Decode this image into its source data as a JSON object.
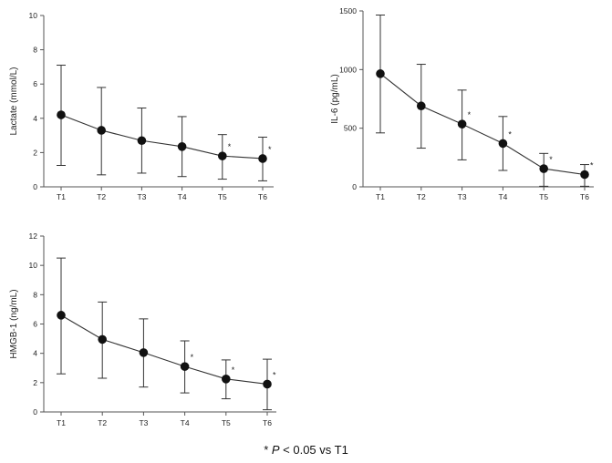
{
  "chart_data": [
    {
      "type": "line",
      "ylabel": "Lactate (mmol/L)",
      "ylim": [
        0,
        10
      ],
      "yticks": [
        "0",
        "2",
        "4",
        "6",
        "8",
        "10"
      ],
      "categories": [
        "T1",
        "T2",
        "T3",
        "T4",
        "T5",
        "T6"
      ],
      "values": [
        4.2,
        3.3,
        2.7,
        2.35,
        1.8,
        1.65
      ],
      "err_low": [
        1.25,
        0.7,
        0.8,
        0.6,
        0.45,
        0.35
      ],
      "err_high": [
        7.1,
        5.8,
        4.6,
        4.1,
        3.05,
        2.9
      ],
      "significant": [
        false,
        false,
        false,
        false,
        true,
        true
      ]
    },
    {
      "type": "line",
      "ylabel": "IL-6 (pg/mL)",
      "ylim": [
        0,
        1500
      ],
      "yticks": [
        "0",
        "500",
        "1000",
        "1500"
      ],
      "categories": [
        "T1",
        "T2",
        "T3",
        "T4",
        "T5",
        "T6"
      ],
      "values": [
        965,
        690,
        535,
        370,
        155,
        105
      ],
      "err_low": [
        460,
        330,
        230,
        140,
        5,
        5
      ],
      "err_high": [
        1465,
        1045,
        825,
        600,
        285,
        190
      ],
      "significant": [
        false,
        false,
        true,
        true,
        true,
        true
      ]
    },
    {
      "type": "line",
      "ylabel": "HMGB-1 (ng/mL)",
      "ylim": [
        0,
        12
      ],
      "yticks": [
        "0",
        "2",
        "4",
        "6",
        "8",
        "10",
        "12"
      ],
      "categories": [
        "T1",
        "T2",
        "T3",
        "T4",
        "T5",
        "T6"
      ],
      "values": [
        6.6,
        4.95,
        4.05,
        3.1,
        2.25,
        1.9
      ],
      "err_low": [
        2.6,
        2.3,
        1.7,
        1.3,
        0.9,
        0.15
      ],
      "err_high": [
        10.5,
        7.5,
        6.35,
        4.85,
        3.55,
        3.6
      ],
      "significant": [
        false,
        false,
        false,
        true,
        true,
        true
      ]
    }
  ],
  "star_symbol": "*",
  "footnote": {
    "star": "* ",
    "p": "P",
    "rest": " < 0.05 vs T1"
  },
  "colors": {
    "line": "#333333",
    "marker": "#111111",
    "axis": "#555555"
  }
}
